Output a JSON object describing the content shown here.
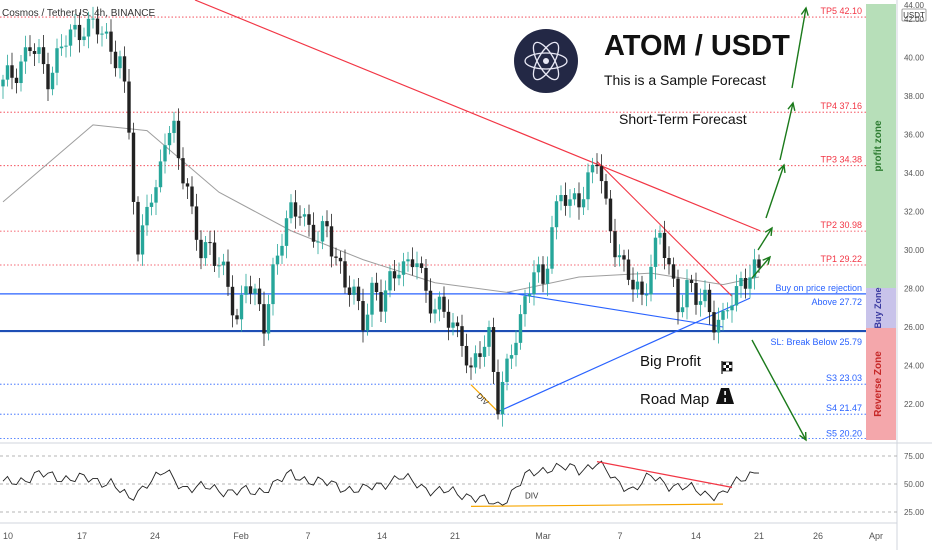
{
  "header": {
    "symbol_line": "Cosmos / TetherUS, 4h, BINANCE",
    "currency_badge": "USDT"
  },
  "overlay": {
    "title": "ATOM / USDT",
    "subtitle": "This is a Sample Forecast",
    "term": "Short-Term Forecast",
    "big_profit": "Big Profit",
    "road_map": "Road Map",
    "div_label_price": "DIV",
    "div_label_rsi": "DIV",
    "logo_icon": "cosmos-atom-logo",
    "flag_icon": "checkered-flag-icon",
    "road_icon": "road-icon"
  },
  "zones": {
    "profit_zone": "profit zone",
    "buy_zone": "Buy Zone",
    "reverse_zone": "Reverse Zone"
  },
  "colors": {
    "up": "#26a69a",
    "down": "#222222",
    "red": "#f23645",
    "blue": "#2962ff",
    "green_arrow": "#1b7a1b",
    "profit_bg": "#b7dfb9",
    "buy_bg": "#c8c3ea",
    "reverse_bg": "#f4a7ab",
    "orange": "#f7a600"
  },
  "chart_data": [
    {
      "type": "candlestick",
      "ylim": [
        20.0,
        43.0
      ],
      "y_ticks": [
        "22.00",
        "24.00",
        "26.00",
        "28.00",
        "30.00",
        "32.00",
        "34.00",
        "36.00",
        "38.00",
        "40.00",
        "42.00"
      ],
      "y_top_partial": "44.00",
      "x_ticks": [
        "10",
        "17",
        "24",
        "Feb",
        "7",
        "14",
        "21",
        "Mar",
        "7",
        "14",
        "21",
        "26",
        "Apr"
      ],
      "levels": [
        {
          "name": "TP5",
          "label": "TP5 42.10",
          "value": 42.1,
          "color": "red",
          "style": "dotted"
        },
        {
          "name": "TP4",
          "label": "TP4 37.16",
          "value": 37.16,
          "color": "red",
          "style": "dotted"
        },
        {
          "name": "TP3",
          "label": "TP3 34.38",
          "value": 34.38,
          "color": "red",
          "style": "dotted"
        },
        {
          "name": "TP2",
          "label": "TP2 30.98",
          "value": 30.98,
          "color": "red",
          "style": "dotted"
        },
        {
          "name": "TP1",
          "label": "TP1 29.22",
          "value": 29.22,
          "color": "red",
          "style": "dotted"
        },
        {
          "name": "Buy rejection",
          "label": "Buy on price rejection",
          "value": 27.72,
          "color": "blue",
          "style": "solid"
        },
        {
          "name": "Buy above",
          "label": "Above 27.72",
          "value": 27.72,
          "color": "blue",
          "style": "none"
        },
        {
          "name": "SL",
          "label": "SL: Break Below 25.79",
          "value": 25.79,
          "color": "blue",
          "style": "thick"
        },
        {
          "name": "S3",
          "label": "S3 23.03",
          "value": 23.03,
          "color": "blue",
          "style": "dotted"
        },
        {
          "name": "S4",
          "label": "S4 21.47",
          "value": 21.47,
          "color": "blue",
          "style": "dotted"
        },
        {
          "name": "S5",
          "label": "S5 20.20",
          "value": 20.2,
          "color": "blue",
          "style": "dotted"
        }
      ],
      "price_series": [
        {
          "x": 0,
          "y": 38.5
        },
        {
          "x": 3,
          "y": 40.5
        },
        {
          "x": 5,
          "y": 39.2
        },
        {
          "x": 7,
          "y": 40.8
        },
        {
          "x": 9,
          "y": 41.8
        },
        {
          "x": 11,
          "y": 41.2
        },
        {
          "x": 13,
          "y": 40.0
        },
        {
          "x": 14,
          "y": 36.0
        },
        {
          "x": 15,
          "y": 29.5
        },
        {
          "x": 16,
          "y": 33.0
        },
        {
          "x": 17,
          "y": 32.5
        },
        {
          "x": 18,
          "y": 35.8
        },
        {
          "x": 19,
          "y": 36.5
        },
        {
          "x": 20,
          "y": 34.0
        },
        {
          "x": 21,
          "y": 31.5
        },
        {
          "x": 22,
          "y": 30.0
        },
        {
          "x": 23,
          "y": 30.5
        },
        {
          "x": 24,
          "y": 29.0
        },
        {
          "x": 25,
          "y": 28.0
        },
        {
          "x": 26,
          "y": 26.5
        },
        {
          "x": 27,
          "y": 28.5
        },
        {
          "x": 28,
          "y": 27.2
        },
        {
          "x": 29,
          "y": 26.3
        },
        {
          "x": 30,
          "y": 29.0
        },
        {
          "x": 31,
          "y": 30.5
        },
        {
          "x": 32,
          "y": 31.8
        },
        {
          "x": 33,
          "y": 32.5
        },
        {
          "x": 34,
          "y": 31.0
        },
        {
          "x": 35,
          "y": 30.3
        },
        {
          "x": 36,
          "y": 31.3
        },
        {
          "x": 37,
          "y": 29.8
        },
        {
          "x": 38,
          "y": 28.0
        },
        {
          "x": 39,
          "y": 27.6
        },
        {
          "x": 40,
          "y": 26.6
        },
        {
          "x": 41,
          "y": 27.8
        },
        {
          "x": 42,
          "y": 27.0
        },
        {
          "x": 43,
          "y": 28.5
        },
        {
          "x": 44,
          "y": 29.5
        },
        {
          "x": 45,
          "y": 28.8
        },
        {
          "x": 46,
          "y": 29.5
        },
        {
          "x": 47,
          "y": 28.0
        },
        {
          "x": 48,
          "y": 27.0
        },
        {
          "x": 49,
          "y": 26.5
        },
        {
          "x": 50,
          "y": 26.2
        },
        {
          "x": 51,
          "y": 25.6
        },
        {
          "x": 52,
          "y": 23.2
        },
        {
          "x": 53,
          "y": 24.8
        },
        {
          "x": 54,
          "y": 25.8
        },
        {
          "x": 55,
          "y": 22.0
        },
        {
          "x": 56,
          "y": 23.5
        },
        {
          "x": 57,
          "y": 25.8
        },
        {
          "x": 58,
          "y": 27.5
        },
        {
          "x": 59,
          "y": 28.8
        },
        {
          "x": 60,
          "y": 28.0
        },
        {
          "x": 61,
          "y": 31.5
        },
        {
          "x": 62,
          "y": 33.0
        },
        {
          "x": 63,
          "y": 32.0
        },
        {
          "x": 64,
          "y": 32.8
        },
        {
          "x": 65,
          "y": 33.8
        },
        {
          "x": 66,
          "y": 34.6
        },
        {
          "x": 67,
          "y": 32.0
        },
        {
          "x": 68,
          "y": 30.5
        },
        {
          "x": 69,
          "y": 29.0
        },
        {
          "x": 70,
          "y": 28.0
        },
        {
          "x": 71,
          "y": 27.6
        },
        {
          "x": 72,
          "y": 29.5
        },
        {
          "x": 73,
          "y": 30.6
        },
        {
          "x": 74,
          "y": 29.0
        },
        {
          "x": 75,
          "y": 27.4
        },
        {
          "x": 76,
          "y": 28.0
        },
        {
          "x": 77,
          "y": 27.3
        },
        {
          "x": 78,
          "y": 27.6
        },
        {
          "x": 79,
          "y": 26.5
        },
        {
          "x": 80,
          "y": 26.0
        },
        {
          "x": 81,
          "y": 27.5
        },
        {
          "x": 82,
          "y": 28.5
        },
        {
          "x": 83,
          "y": 28.8
        },
        {
          "x": 84,
          "y": 28.6
        }
      ],
      "ma_series": [
        {
          "x": 0,
          "y": 32.5
        },
        {
          "x": 10,
          "y": 36.5
        },
        {
          "x": 16,
          "y": 36.2
        },
        {
          "x": 24,
          "y": 33.0
        },
        {
          "x": 32,
          "y": 31.0
        },
        {
          "x": 40,
          "y": 29.5
        },
        {
          "x": 48,
          "y": 28.3
        },
        {
          "x": 56,
          "y": 27.8
        },
        {
          "x": 64,
          "y": 28.6
        },
        {
          "x": 72,
          "y": 28.8
        },
        {
          "x": 80,
          "y": 28.2
        },
        {
          "x": 84,
          "y": 28.6
        }
      ]
    },
    {
      "type": "line",
      "name": "RSI",
      "ylim": [
        20,
        80
      ],
      "y_ticks": [
        "75.00",
        "50.00",
        "25.00"
      ],
      "series": [
        {
          "x": 0,
          "y": 50
        },
        {
          "x": 4,
          "y": 58
        },
        {
          "x": 8,
          "y": 55
        },
        {
          "x": 12,
          "y": 52
        },
        {
          "x": 14,
          "y": 35
        },
        {
          "x": 16,
          "y": 52
        },
        {
          "x": 18,
          "y": 60
        },
        {
          "x": 20,
          "y": 48
        },
        {
          "x": 24,
          "y": 45
        },
        {
          "x": 28,
          "y": 42
        },
        {
          "x": 32,
          "y": 58
        },
        {
          "x": 36,
          "y": 50
        },
        {
          "x": 40,
          "y": 44
        },
        {
          "x": 44,
          "y": 56
        },
        {
          "x": 48,
          "y": 44
        },
        {
          "x": 52,
          "y": 40
        },
        {
          "x": 55,
          "y": 30
        },
        {
          "x": 58,
          "y": 56
        },
        {
          "x": 61,
          "y": 66
        },
        {
          "x": 64,
          "y": 62
        },
        {
          "x": 66,
          "y": 70
        },
        {
          "x": 68,
          "y": 52
        },
        {
          "x": 70,
          "y": 46
        },
        {
          "x": 72,
          "y": 56
        },
        {
          "x": 74,
          "y": 50
        },
        {
          "x": 76,
          "y": 46
        },
        {
          "x": 78,
          "y": 42
        },
        {
          "x": 80,
          "y": 40
        },
        {
          "x": 82,
          "y": 55
        },
        {
          "x": 84,
          "y": 64
        }
      ]
    }
  ]
}
